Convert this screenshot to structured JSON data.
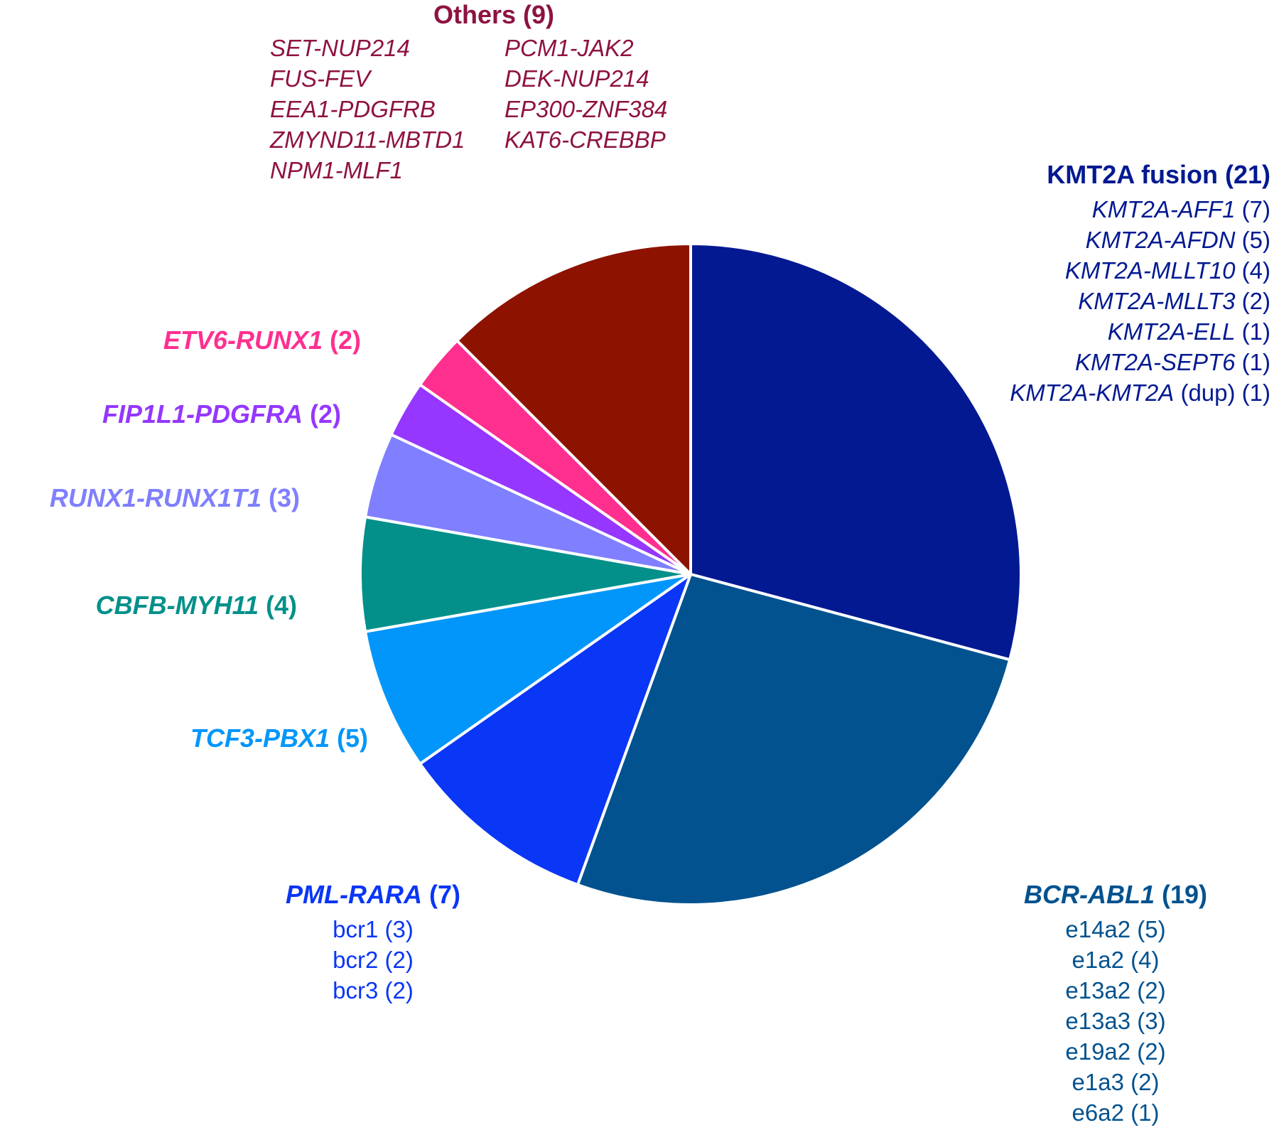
{
  "chart_data": {
    "type": "pie",
    "start_angle_deg": 0,
    "direction": "clockwise",
    "slices": [
      {
        "key": "kmt2a",
        "label": "KMT2A fusion",
        "label_italic": false,
        "count_label": "(21)",
        "value": 21,
        "color": "#021991"
      },
      {
        "key": "bcr",
        "label": "BCR-ABL1",
        "label_italic": true,
        "count_label": "(19)",
        "value": 19,
        "color": "#02528F"
      },
      {
        "key": "pml",
        "label": "PML-RARA",
        "label_italic": true,
        "count_label": "(7)",
        "value": 7,
        "color": "#0A36F5"
      },
      {
        "key": "tcf3",
        "label": "TCF3-PBX1",
        "label_italic": true,
        "count_label": "(5)",
        "value": 5,
        "color": "#0296FB"
      },
      {
        "key": "cbfb",
        "label": "CBFB-MYH11",
        "label_italic": true,
        "count_label": "(4)",
        "value": 4,
        "color": "#03908A"
      },
      {
        "key": "runx1",
        "label": "RUNX1-RUNX1T1",
        "label_italic": true,
        "count_label": "(3)",
        "value": 3,
        "color": "#7F7FFF"
      },
      {
        "key": "fip1l1",
        "label": "FIP1L1-PDGFRA",
        "label_italic": true,
        "count_label": "(2)",
        "value": 2,
        "color": "#9537FF"
      },
      {
        "key": "etv6",
        "label": "ETV6-RUNX1",
        "label_italic": true,
        "count_label": "(2)",
        "value": 2,
        "color": "#FF2F8F"
      },
      {
        "key": "others",
        "label": "Others",
        "label_italic": false,
        "count_label": "(9)",
        "value": 9,
        "color": "#8E1200"
      }
    ],
    "label_colors": {
      "kmt2a": "#021991",
      "bcr": "#02528F",
      "pml": "#0A36F5",
      "tcf3": "#0296FB",
      "cbfb": "#03908A",
      "runx1": "#7F7FFF",
      "fip1l1": "#9537FF",
      "etv6": "#FF2F8F",
      "others": "#8E1242"
    },
    "kmt2a_breakdown": [
      {
        "name": "KMT2A-AFF1",
        "suffix": "",
        "count": "(7)"
      },
      {
        "name": "KMT2A-AFDN",
        "suffix": "",
        "count": "(5)"
      },
      {
        "name": "KMT2A-MLLT10",
        "suffix": "",
        "count": "(4)"
      },
      {
        "name": "KMT2A-MLLT3",
        "suffix": "",
        "count": "(2)"
      },
      {
        "name": "KMT2A-ELL",
        "suffix": "",
        "count": "(1)"
      },
      {
        "name": "KMT2A-SEPT6",
        "suffix": "",
        "count": "(1)"
      },
      {
        "name": "KMT2A-KMT2A",
        "suffix": " (dup)",
        "count": "(1)"
      }
    ],
    "bcr_breakdown": [
      "e14a2 (5)",
      "e1a2 (4)",
      "e13a2 (2)",
      "e13a3 (3)",
      "e19a2 (2)",
      "e1a3 (2)",
      "e6a2 (1)"
    ],
    "pml_breakdown": [
      "bcr1 (3)",
      "bcr2 (2)",
      "bcr3 (2)"
    ],
    "others_col1": [
      "SET-NUP214",
      "FUS-FEV",
      "EEA1-PDGFRB",
      "ZMYND11-MBTD1",
      "NPM1-MLF1"
    ],
    "others_col2": [
      "PCM1-JAK2",
      "DEK-NUP214",
      "EP300-ZNF384",
      "KAT6-CREBBP"
    ]
  }
}
